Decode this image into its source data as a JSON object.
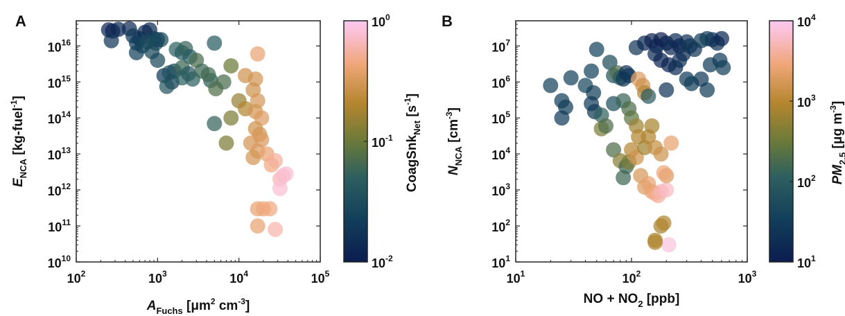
{
  "chart_data": [
    {
      "panel": "A",
      "type": "scatter",
      "xscale": "log",
      "yscale": "log",
      "xlim": [
        100,
        100000
      ],
      "ylim": [
        10000000000.0,
        5e+16
      ],
      "xticks": [
        {
          "base": "10",
          "exp": "2"
        },
        {
          "base": "10",
          "exp": "3"
        },
        {
          "base": "10",
          "exp": "4"
        },
        {
          "base": "10",
          "exp": "5"
        }
      ],
      "yticks": [
        {
          "base": "10",
          "exp": "10"
        },
        {
          "base": "10",
          "exp": "11"
        },
        {
          "base": "10",
          "exp": "12"
        },
        {
          "base": "10",
          "exp": "13"
        },
        {
          "base": "10",
          "exp": "14"
        },
        {
          "base": "10",
          "exp": "15"
        },
        {
          "base": "10",
          "exp": "16"
        }
      ],
      "xlabel": {
        "pre": "A",
        "sub": "Fuchs",
        "mid": " [μm",
        "sup1": "2",
        "mid2": " cm",
        "sup2": "-3",
        "post": "]"
      },
      "ylabel": {
        "pre": "E",
        "sub": "NCA",
        "mid": " [kg-fuel",
        "sup": "-1",
        "post": "]"
      },
      "colorbar": {
        "label": {
          "pre": "CoagSnk",
          "sub": "Net",
          "mid": " [s",
          "sup": "-1",
          "post": "]"
        },
        "scale": "log",
        "range": [
          0.01,
          1
        ],
        "ticks": [
          {
            "base": "10",
            "exp": "-2"
          },
          {
            "base": "10",
            "exp": "-1"
          },
          {
            "base": "10",
            "exp": "0"
          }
        ]
      },
      "points": [
        {
          "x": 250,
          "y": 2.8e+16,
          "c": 0.012
        },
        {
          "x": 280,
          "y": 2.6e+16,
          "c": 0.012
        },
        {
          "x": 330,
          "y": 2.9e+16,
          "c": 0.013
        },
        {
          "x": 270,
          "y": 1.4e+16,
          "c": 0.018
        },
        {
          "x": 450,
          "y": 3e+16,
          "c": 0.014
        },
        {
          "x": 500,
          "y": 1.9e+16,
          "c": 0.02
        },
        {
          "x": 600,
          "y": 1.6e+16,
          "c": 0.018
        },
        {
          "x": 700,
          "y": 2.4e+16,
          "c": 0.013
        },
        {
          "x": 800,
          "y": 2.8e+16,
          "c": 0.013
        },
        {
          "x": 550,
          "y": 1.2e+16,
          "c": 0.022
        },
        {
          "x": 650,
          "y": 1e+16,
          "c": 0.024
        },
        {
          "x": 900,
          "y": 1.6e+16,
          "c": 0.022
        },
        {
          "x": 1000,
          "y": 1.5e+16,
          "c": 0.025
        },
        {
          "x": 1100,
          "y": 1.5e+16,
          "c": 0.03
        },
        {
          "x": 950,
          "y": 1.2e+16,
          "c": 0.028
        },
        {
          "x": 750,
          "y": 1.3e+16,
          "c": 0.03
        },
        {
          "x": 850,
          "y": 7000000000000000.0,
          "c": 0.028
        },
        {
          "x": 550,
          "y": 6500000000000000.0,
          "c": 0.024
        },
        {
          "x": 1000,
          "y": 4000000000000000.0,
          "c": 0.03
        },
        {
          "x": 1200,
          "y": 1500000000000000.0,
          "c": 0.02
        },
        {
          "x": 1500,
          "y": 1000000000000000.0,
          "c": 0.022
        },
        {
          "x": 1600,
          "y": 2000000000000000.0,
          "c": 0.028
        },
        {
          "x": 1400,
          "y": 1800000000000000.0,
          "c": 0.035
        },
        {
          "x": 1300,
          "y": 750000000000000.0,
          "c": 0.04
        },
        {
          "x": 1700,
          "y": 8000000000000000.0,
          "c": 0.05
        },
        {
          "x": 2000,
          "y": 6500000000000000.0,
          "c": 0.045
        },
        {
          "x": 2200,
          "y": 8500000000000000.0,
          "c": 0.055
        },
        {
          "x": 2500,
          "y": 5000000000000000.0,
          "c": 0.045
        },
        {
          "x": 3000,
          "y": 4000000000000000.0,
          "c": 0.07
        },
        {
          "x": 2000,
          "y": 2500000000000000.0,
          "c": 0.06
        },
        {
          "x": 2400,
          "y": 1700000000000000.0,
          "c": 0.04
        },
        {
          "x": 2700,
          "y": 1200000000000000.0,
          "c": 0.05
        },
        {
          "x": 2000,
          "y": 1300000000000000.0,
          "c": 0.05
        },
        {
          "x": 3500,
          "y": 2000000000000000.0,
          "c": 0.06
        },
        {
          "x": 4500,
          "y": 1100000000000000.0,
          "c": 0.05
        },
        {
          "x": 5000,
          "y": 1.2e+16,
          "c": 0.045
        },
        {
          "x": 5200,
          "y": 650000000000000.0,
          "c": 0.075
        },
        {
          "x": 4200,
          "y": 1600000000000000.0,
          "c": 0.065
        },
        {
          "x": 8000,
          "y": 2800000000000000.0,
          "c": 0.1
        },
        {
          "x": 6500,
          "y": 1000000000000000.0,
          "c": 0.07
        },
        {
          "x": 10000,
          "y": 300000000000000.0,
          "c": 0.15
        },
        {
          "x": 8000,
          "y": 100000000000000.0,
          "c": 0.12
        },
        {
          "x": 5000,
          "y": 70000000000000.0,
          "c": 0.055
        },
        {
          "x": 7000,
          "y": 20000000000000.0,
          "c": 0.12
        },
        {
          "x": 12000,
          "y": 180000000000000.0,
          "c": 0.2
        },
        {
          "x": 12000,
          "y": 1500000000000000.0,
          "c": 0.28
        },
        {
          "x": 17000,
          "y": 6000000000000000.0,
          "c": 0.4
        },
        {
          "x": 16000,
          "y": 1200000000000000.0,
          "c": 0.3
        },
        {
          "x": 15000,
          "y": 600000000000000.0,
          "c": 0.28
        },
        {
          "x": 17000,
          "y": 300000000000000.0,
          "c": 0.32
        },
        {
          "x": 16000,
          "y": 150000000000000.0,
          "c": 0.3
        },
        {
          "x": 19000,
          "y": 100000000000000.0,
          "c": 0.35
        },
        {
          "x": 16000,
          "y": 50000000000000.0,
          "c": 0.28
        },
        {
          "x": 18000,
          "y": 35000000000000.0,
          "c": 0.3
        },
        {
          "x": 14000,
          "y": 20000000000000.0,
          "c": 0.3
        },
        {
          "x": 17000,
          "y": 12000000000000.0,
          "c": 0.35
        },
        {
          "x": 15000,
          "y": 8000000000000.0,
          "c": 0.3
        },
        {
          "x": 19000,
          "y": 25000000000000.0,
          "c": 0.33
        },
        {
          "x": 22000,
          "y": 10000000000000.0,
          "c": 0.4
        },
        {
          "x": 25000,
          "y": 5000000000000.0,
          "c": 0.45
        },
        {
          "x": 28000,
          "y": 6500000000000.0,
          "c": 0.55
        },
        {
          "x": 32000,
          "y": 2000000000000.0,
          "c": 0.65
        },
        {
          "x": 35000,
          "y": 2500000000000.0,
          "c": 0.75
        },
        {
          "x": 38000,
          "y": 2800000000000.0,
          "c": 0.8
        },
        {
          "x": 32000,
          "y": 1100000000000.0,
          "c": 0.8
        },
        {
          "x": 17000,
          "y": 300000000000.0,
          "c": 0.4
        },
        {
          "x": 20000,
          "y": 300000000000.0,
          "c": 0.42
        },
        {
          "x": 24000,
          "y": 300000000000.0,
          "c": 0.45
        },
        {
          "x": 17000,
          "y": 100000000000.0,
          "c": 0.4
        },
        {
          "x": 28000,
          "y": 80000000000.0,
          "c": 0.6
        }
      ]
    },
    {
      "panel": "B",
      "type": "scatter",
      "xscale": "log",
      "yscale": "log",
      "xlim": [
        10,
        1000
      ],
      "ylim": [
        10,
        50000000.0
      ],
      "xticks": [
        {
          "base": "10",
          "exp": "1"
        },
        {
          "base": "10",
          "exp": "2"
        },
        {
          "base": "10",
          "exp": "3"
        }
      ],
      "yticks": [
        {
          "base": "10",
          "exp": "1"
        },
        {
          "base": "10",
          "exp": "2"
        },
        {
          "base": "10",
          "exp": "3"
        },
        {
          "base": "10",
          "exp": "4"
        },
        {
          "base": "10",
          "exp": "5"
        },
        {
          "base": "10",
          "exp": "6"
        },
        {
          "base": "10",
          "exp": "7"
        }
      ],
      "xlabel": {
        "pre": "NO + NO",
        "sub": "2",
        "post": " [ppb]"
      },
      "ylabel": {
        "pre": "N",
        "sub": "NCA",
        "mid": " [cm",
        "sup": "-3",
        "post": "]"
      },
      "colorbar": {
        "label": {
          "pre": "PM",
          "sub": "2.5",
          "mid": " [μg m",
          "sup": "-3",
          "post": "]"
        },
        "scale": "log",
        "range": [
          10,
          10000
        ],
        "ticks": [
          {
            "base": "10",
            "exp": "1"
          },
          {
            "base": "10",
            "exp": "2"
          },
          {
            "base": "10",
            "exp": "3"
          },
          {
            "base": "10",
            "exp": "4"
          }
        ]
      },
      "points": [
        {
          "x": 20,
          "y": 800000.0,
          "c": 40
        },
        {
          "x": 25,
          "y": 300000.0,
          "c": 35
        },
        {
          "x": 27,
          "y": 200000.0,
          "c": 32
        },
        {
          "x": 25,
          "y": 100000.0,
          "c": 30
        },
        {
          "x": 30,
          "y": 1300000.0,
          "c": 40
        },
        {
          "x": 40,
          "y": 800000.0,
          "c": 45
        },
        {
          "x": 45,
          "y": 2000000.0,
          "c": 40
        },
        {
          "x": 47,
          "y": 500000.0,
          "c": 35
        },
        {
          "x": 45,
          "y": 250000.0,
          "c": 30
        },
        {
          "x": 48,
          "y": 150000.0,
          "c": 28
        },
        {
          "x": 50,
          "y": 8000000.0,
          "c": 40
        },
        {
          "x": 55,
          "y": 120000.0,
          "c": 120
        },
        {
          "x": 55,
          "y": 50000.0,
          "c": 400
        },
        {
          "x": 60,
          "y": 60000.0,
          "c": 200
        },
        {
          "x": 65,
          "y": 3500000.0,
          "c": 55
        },
        {
          "x": 70,
          "y": 1500000.0,
          "c": 80
        },
        {
          "x": 75,
          "y": 1800000.0,
          "c": 200
        },
        {
          "x": 70,
          "y": 250000.0,
          "c": 60
        },
        {
          "x": 80,
          "y": 1300000.0,
          "c": 100
        },
        {
          "x": 85,
          "y": 1200000.0,
          "c": 30
        },
        {
          "x": 90,
          "y": 1800000.0,
          "c": 20
        },
        {
          "x": 95,
          "y": 1500000.0,
          "c": 25
        },
        {
          "x": 85,
          "y": 300000.0,
          "c": 140
        },
        {
          "x": 95,
          "y": 180000.0,
          "c": 200
        },
        {
          "x": 100,
          "y": 100000.0,
          "c": 250
        },
        {
          "x": 70,
          "y": 13000.0,
          "c": 200
        },
        {
          "x": 80,
          "y": 6500.0,
          "c": 500
        },
        {
          "x": 90,
          "y": 4500.0,
          "c": 150
        },
        {
          "x": 85,
          "y": 2200.0,
          "c": 150
        },
        {
          "x": 95,
          "y": 6000.0,
          "c": 400
        },
        {
          "x": 110,
          "y": 60000.0,
          "c": 700
        },
        {
          "x": 115,
          "y": 30000.0,
          "c": 900
        },
        {
          "x": 100,
          "y": 13000.0,
          "c": 1000
        },
        {
          "x": 110,
          "y": 8000.0,
          "c": 1500
        },
        {
          "x": 120,
          "y": 2500.0,
          "c": 1800
        },
        {
          "x": 130,
          "y": 1200.0,
          "c": 2000
        },
        {
          "x": 140,
          "y": 1500.0,
          "c": 2500
        },
        {
          "x": 150,
          "y": 900.0,
          "c": 2500
        },
        {
          "x": 160,
          "y": 800.0,
          "c": 3000
        },
        {
          "x": 170,
          "y": 700.0,
          "c": 4000
        },
        {
          "x": 180,
          "y": 900.0,
          "c": 5000
        },
        {
          "x": 200,
          "y": 1000.0,
          "c": 6000
        },
        {
          "x": 130,
          "y": 15000.0,
          "c": 700
        },
        {
          "x": 140,
          "y": 30000.0,
          "c": 900
        },
        {
          "x": 150,
          "y": 60000.0,
          "c": 800
        },
        {
          "x": 160,
          "y": 15000.0,
          "c": 1300
        },
        {
          "x": 180,
          "y": 10000.0,
          "c": 1500
        },
        {
          "x": 200,
          "y": 2500.0,
          "c": 2000
        },
        {
          "x": 220,
          "y": 20000.0,
          "c": 2500
        },
        {
          "x": 190,
          "y": 3000.0,
          "c": 2800
        },
        {
          "x": 180,
          "y": 100.0,
          "c": 800
        },
        {
          "x": 190,
          "y": 120.0,
          "c": 900
        },
        {
          "x": 160,
          "y": 40,
          "c": 800
        },
        {
          "x": 210,
          "y": 30,
          "c": 8000
        },
        {
          "x": 160,
          "y": 35,
          "c": 900
        },
        {
          "x": 115,
          "y": 1200000.0,
          "c": 2000
        },
        {
          "x": 125,
          "y": 800000.0,
          "c": 1500
        },
        {
          "x": 130,
          "y": 500000.0,
          "c": 900
        },
        {
          "x": 140,
          "y": 400000.0,
          "c": 100
        },
        {
          "x": 110,
          "y": 9000000.0,
          "c": 25
        },
        {
          "x": 130,
          "y": 12000000.0,
          "c": 15
        },
        {
          "x": 150,
          "y": 14000000.0,
          "c": 12
        },
        {
          "x": 165,
          "y": 10000000.0,
          "c": 13
        },
        {
          "x": 180,
          "y": 15000000.0,
          "c": 11
        },
        {
          "x": 200,
          "y": 12000000.0,
          "c": 12
        },
        {
          "x": 220,
          "y": 9000000.0,
          "c": 15
        },
        {
          "x": 240,
          "y": 14000000.0,
          "c": 18
        },
        {
          "x": 260,
          "y": 10000000.0,
          "c": 14
        },
        {
          "x": 280,
          "y": 6000000.0,
          "c": 16
        },
        {
          "x": 300,
          "y": 13000000.0,
          "c": 20
        },
        {
          "x": 320,
          "y": 10000000.0,
          "c": 25
        },
        {
          "x": 350,
          "y": 8000000.0,
          "c": 22
        },
        {
          "x": 400,
          "y": 14000000.0,
          "c": 30
        },
        {
          "x": 450,
          "y": 16000000.0,
          "c": 35
        },
        {
          "x": 500,
          "y": 15000000.0,
          "c": 25
        },
        {
          "x": 550,
          "y": 12000000.0,
          "c": 20
        },
        {
          "x": 600,
          "y": 16000000.0,
          "c": 15
        },
        {
          "x": 580,
          "y": 4000000.0,
          "c": 30
        },
        {
          "x": 620,
          "y": 2500000.0,
          "c": 35
        },
        {
          "x": 160,
          "y": 6000000.0,
          "c": 18
        },
        {
          "x": 180,
          "y": 4000000.0,
          "c": 14
        },
        {
          "x": 210,
          "y": 3000000.0,
          "c": 13
        },
        {
          "x": 240,
          "y": 2500000.0,
          "c": 16
        },
        {
          "x": 260,
          "y": 4000000.0,
          "c": 20
        },
        {
          "x": 200,
          "y": 600000.0,
          "c": 25
        },
        {
          "x": 300,
          "y": 1200000.0,
          "c": 30
        },
        {
          "x": 330,
          "y": 900000.0,
          "c": 35
        },
        {
          "x": 400,
          "y": 1200000.0,
          "c": 28
        },
        {
          "x": 450,
          "y": 600000.0,
          "c": 32
        },
        {
          "x": 480,
          "y": 3000000.0,
          "c": 30
        }
      ]
    }
  ]
}
